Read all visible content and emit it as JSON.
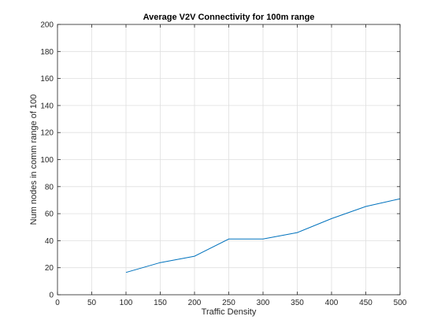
{
  "chart_data": {
    "type": "line",
    "title": "Average V2V Connectivity for 100m range",
    "xlabel": "Traffic Density",
    "ylabel": "Num nodes in comm range of 100",
    "xlim": [
      0,
      500
    ],
    "ylim": [
      0,
      200
    ],
    "xticks": [
      "0",
      "50",
      "100",
      "150",
      "200",
      "250",
      "300",
      "350",
      "400",
      "450",
      "500"
    ],
    "yticks": [
      "0",
      "20",
      "40",
      "60",
      "80",
      "100",
      "120",
      "140",
      "160",
      "180",
      "200"
    ],
    "grid": true,
    "box": true,
    "series": [
      {
        "color": "#0072bd",
        "x": [
          100,
          150,
          200,
          250,
          300,
          350,
          400,
          450,
          500
        ],
        "y": [
          16.5,
          23.8,
          28.5,
          41.2,
          41.2,
          46,
          56.3,
          65.3,
          71
        ]
      }
    ]
  }
}
